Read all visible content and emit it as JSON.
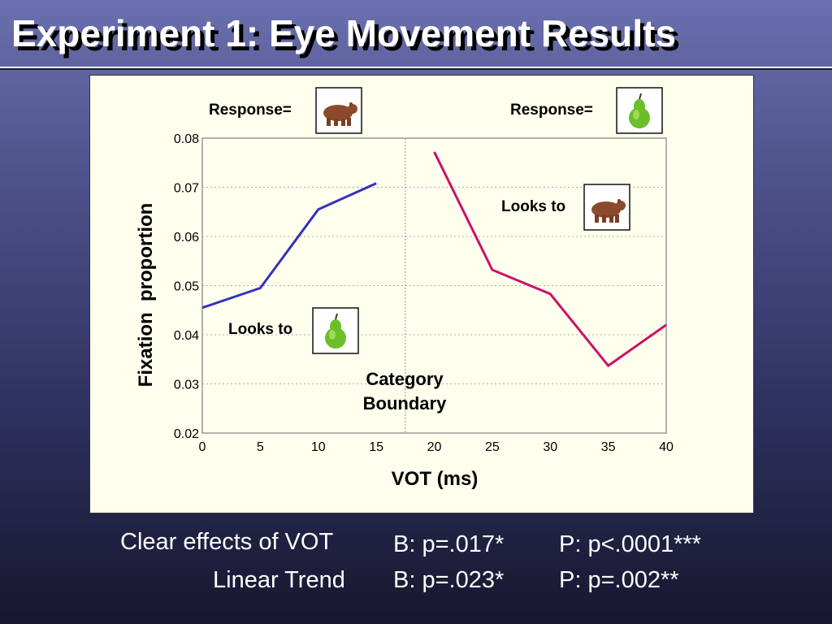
{
  "slide": {
    "title": "Experiment 1: Eye Movement Results"
  },
  "chart_data": {
    "type": "line",
    "xlabel": "VOT (ms)",
    "ylabel": "Fixation  proportion",
    "xlim": [
      0,
      40
    ],
    "ylim": [
      0.02,
      0.08
    ],
    "x_ticks": [
      "0",
      "5",
      "10",
      "15",
      "20",
      "25",
      "30",
      "35",
      "40"
    ],
    "y_ticks": [
      "0.08",
      "0.07",
      "0.06",
      "0.05",
      "0.04",
      "0.03",
      "0.02"
    ],
    "grid": "horizontal dotted",
    "boundary_x": 17.5,
    "series": [
      {
        "color": "#3333bb",
        "x": [
          0,
          5,
          10,
          15
        ],
        "y": [
          0.0455,
          0.0495,
          0.0655,
          0.0708
        ]
      },
      {
        "color": "#cc1166",
        "x": [
          20,
          25,
          30,
          35,
          40
        ],
        "y": [
          0.0772,
          0.0532,
          0.0483,
          0.0337,
          0.042
        ]
      }
    ],
    "annotations": {
      "response_left": "Response=",
      "response_right": "Response=",
      "looks_to_top": "Looks to",
      "looks_to_bottom": "Looks to",
      "boundary_line1": "Category",
      "boundary_line2": "Boundary"
    },
    "icons": [
      "bear-icon",
      "pear-icon",
      "bear-icon",
      "pear-icon"
    ]
  },
  "stats": {
    "row1_label": "Clear effects of VOT",
    "row1_b": "B: p=.017*",
    "row1_p": "P: p<.0001***",
    "row2_label": "Linear Trend",
    "row2_b": "B: p=.023*",
    "row2_p": "P: p=.002**"
  }
}
